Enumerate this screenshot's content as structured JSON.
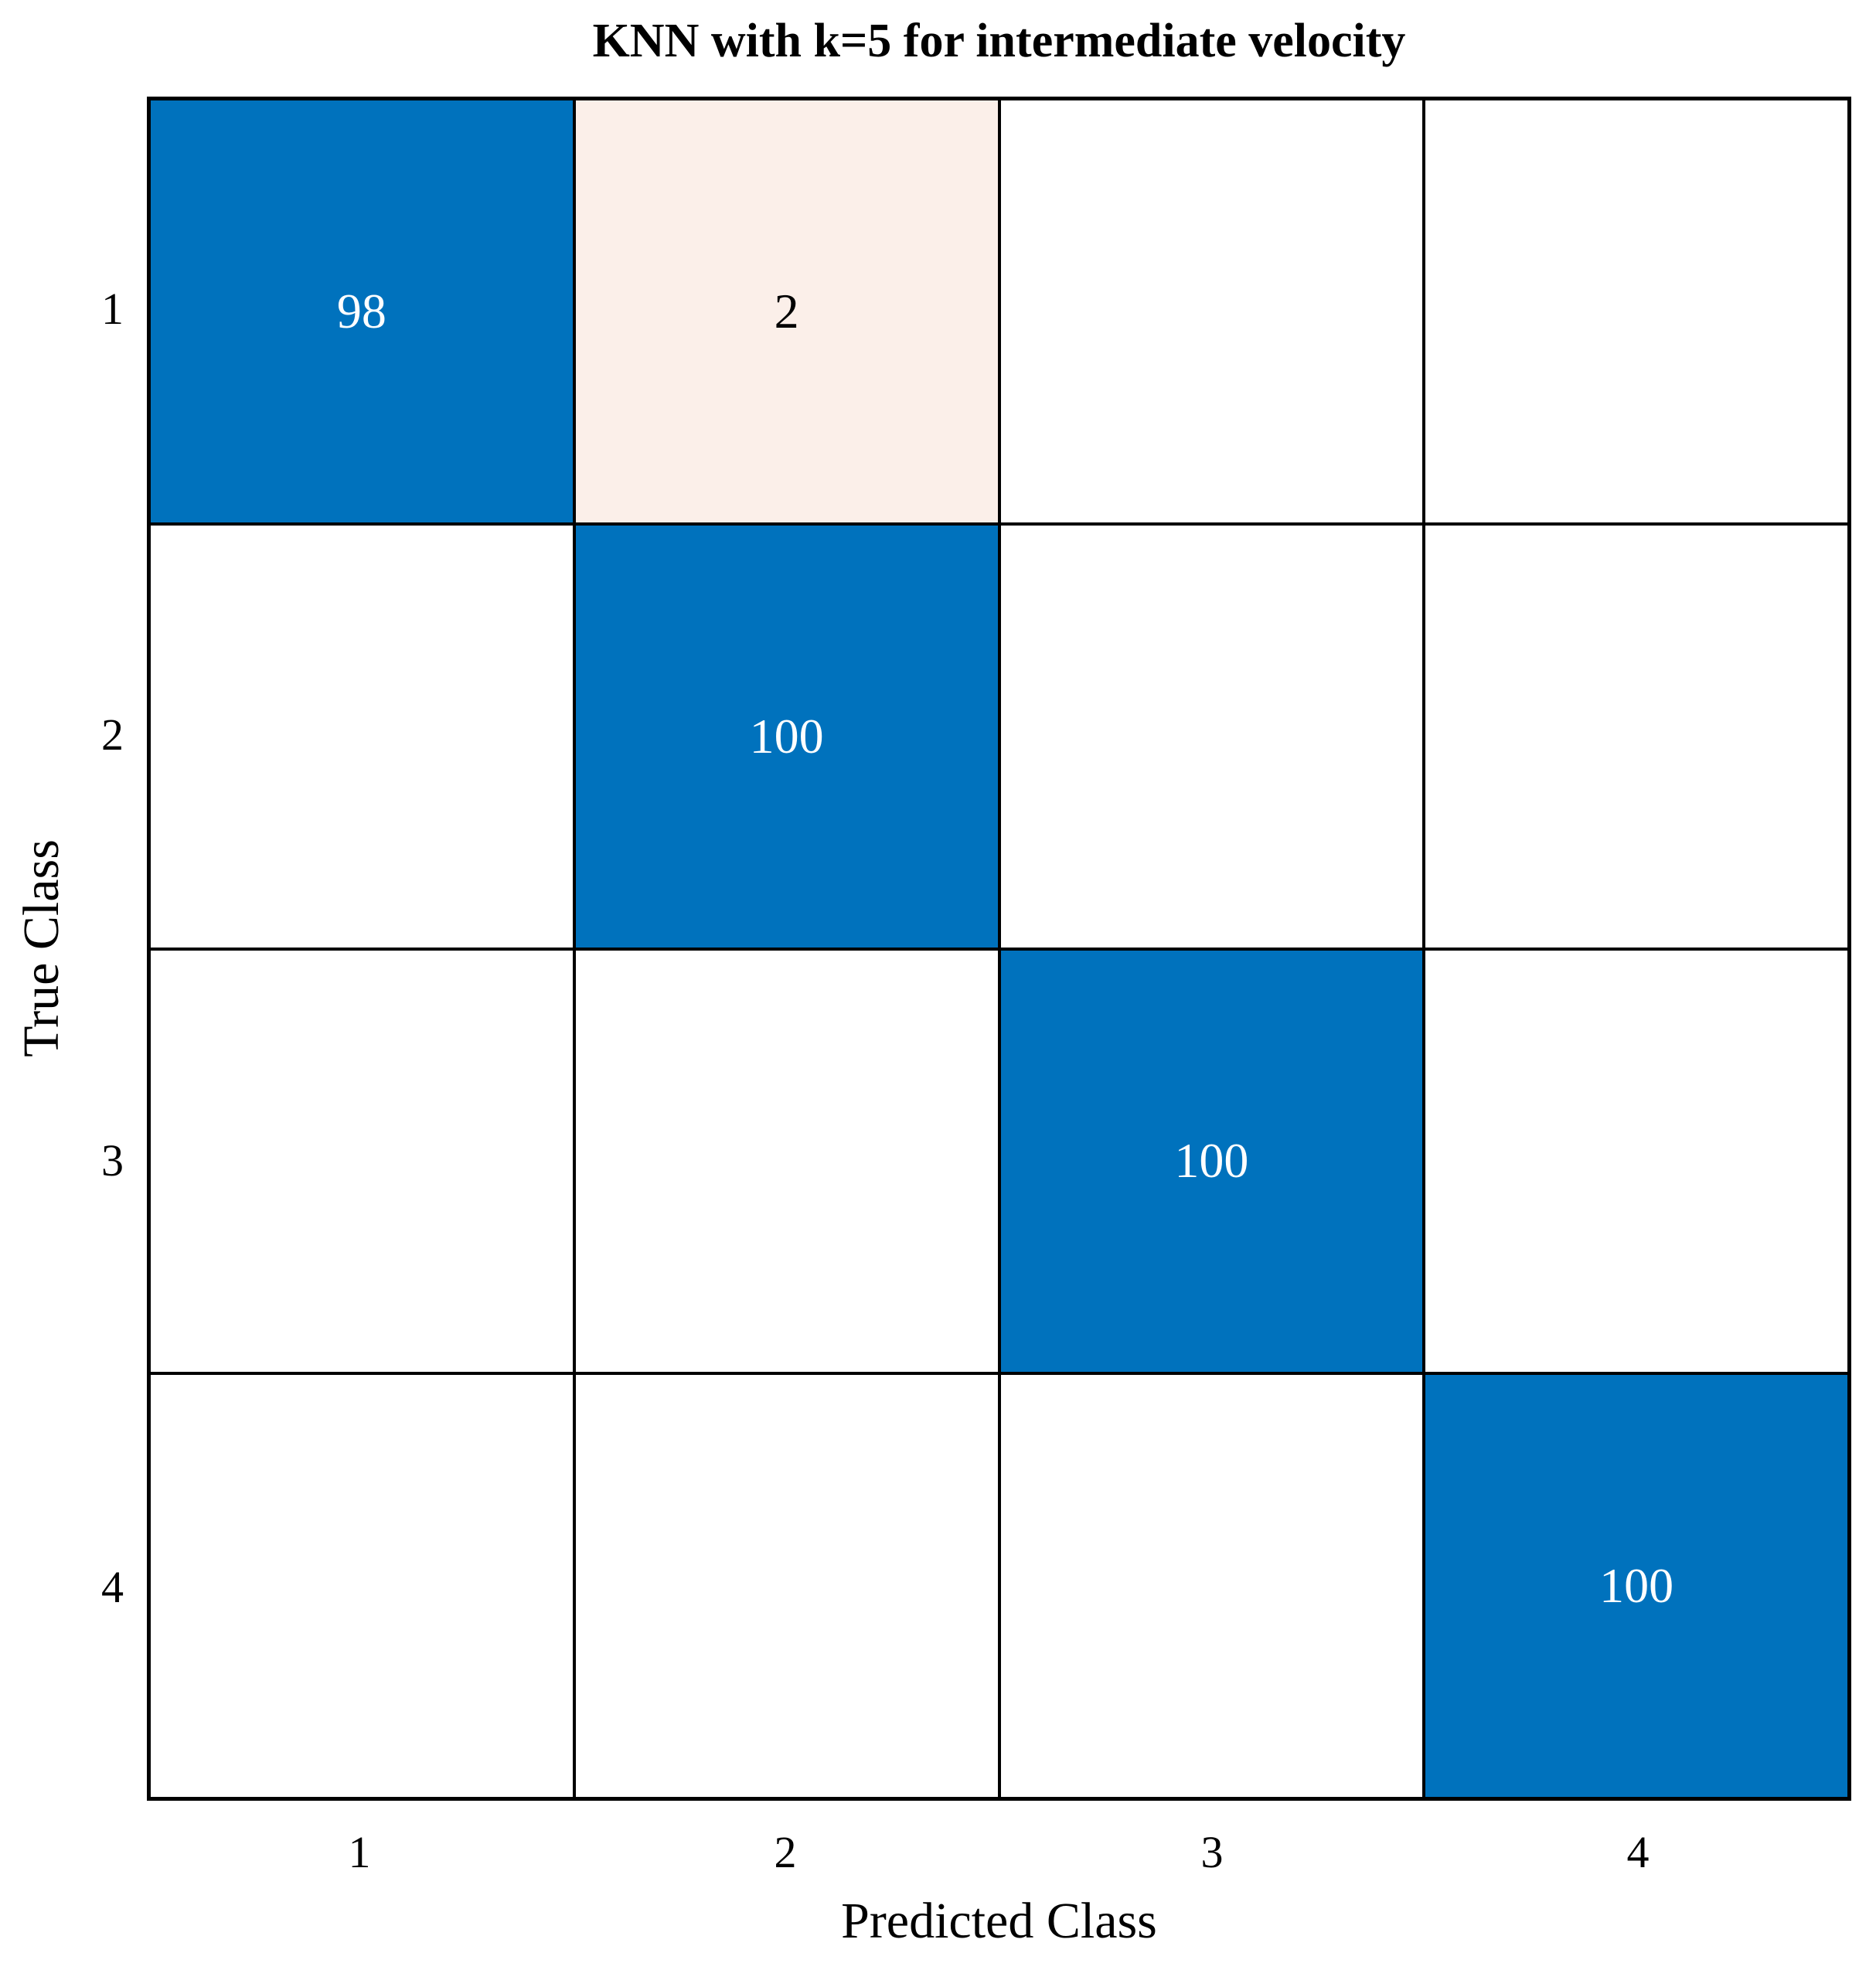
{
  "chart_data": {
    "type": "heatmap",
    "subtype": "confusion-matrix",
    "title": "KNN with k=5 for intermediate velocity",
    "xlabel": "Predicted Class",
    "ylabel": "True Class",
    "x_categories": [
      "1",
      "2",
      "3",
      "4"
    ],
    "y_categories": [
      "1",
      "2",
      "3",
      "4"
    ],
    "matrix": [
      [
        98,
        2,
        0,
        0
      ],
      [
        0,
        100,
        0,
        0
      ],
      [
        0,
        0,
        100,
        0
      ],
      [
        0,
        0,
        0,
        100
      ]
    ],
    "zero_cells_blank": true,
    "grid": "on",
    "legend": "none",
    "colors": {
      "diagonal_fill": "#0072BD",
      "diagonal_text": "#FFFFFF",
      "offdiag_nonzero_fill": "#FBEFE9",
      "offdiag_text": "#000000",
      "zero_fill": "#FFFFFF",
      "grid_line": "#000000",
      "background": "#FFFFFF",
      "label_text": "#000000"
    }
  }
}
